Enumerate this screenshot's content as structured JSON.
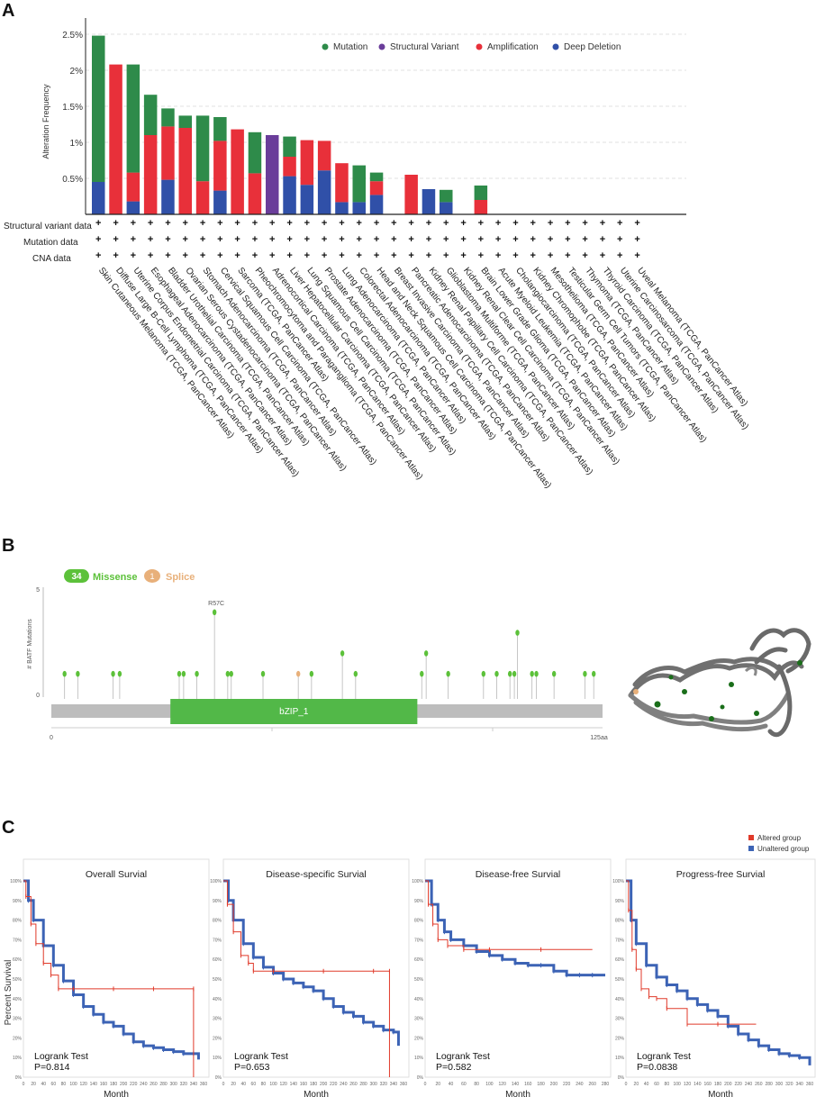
{
  "panels": {
    "a": "A",
    "b": "B",
    "c": "C"
  },
  "colors": {
    "mutation": "#2e8b4a",
    "structural_variant": "#6a3d9a",
    "amplification": "#e8303a",
    "deep_deletion": "#3050a8",
    "altered": "#e03a2a",
    "unaltered": "#3c63b5",
    "missense": "#5cc13a",
    "splice": "#e8b07a",
    "domain": "#52b848",
    "track": "#bdbdbd"
  },
  "chart_data": [
    {
      "type": "bar",
      "ylabel": "Alteration Frequency",
      "xlabel": "",
      "ylim": [
        0,
        2.5
      ],
      "yticks": [
        "2.5%",
        "2%",
        "1.5%",
        "1%",
        "0.5%"
      ],
      "legend_placement": "top-right",
      "legend": [
        "Mutation",
        "Structural Variant",
        "Amplification",
        "Deep Deletion"
      ],
      "categories": [
        "Skin Cutaneous Melanoma (TCGA, PanCancer Atlas)",
        "Diffuse Large B-Cell Lymphoma (TCGA, PanCancer Atlas)",
        "Uterine Corpus Endometrial Carcinoma (TCGA, PanCancer Atlas)",
        "Esophageal Adenocarcinoma (TCGA, PanCancer Atlas)",
        "Bladder Urothelial Carcinoma (TCGA, PanCancer Atlas)",
        "Ovarian Serous Cystadenocarcinoma (TCGA, PanCancer Atlas)",
        "Stomach Adenocarcinoma (TCGA, PanCancer Atlas)",
        "Cervical Squamous Cell Carcinoma (TCGA, PanCancer Atlas)",
        "Sarcoma (TCGA, PanCancer Atlas)",
        "Pheochromocytoma and Paraganglioma (TCGA, PanCancer Atlas)",
        "Adrenocortical Carcinoma (TCGA, PanCancer Atlas)",
        "Liver Hepatocellular Carcinoma (TCGA, PanCancer Atlas)",
        "Lung Squamous Cell Carcinoma (TCGA, PanCancer Atlas)",
        "Prostate Adenocarcinoma (TCGA, PanCancer Atlas)",
        "Lung Adenocarcinoma (TCGA, PanCancer Atlas)",
        "Colorectal Adenocarcinoma (TCGA, PanCancer Atlas)",
        "Head and Neck Squamous Cell Carcinoma (TCGA, PanCancer Atlas)",
        "Breast Invasive Carcinoma (TCGA, PanCancer Atlas)",
        "Pancreatic Adenocarcinoma (TCGA, PanCancer Atlas)",
        "Kidney Renal Papillary Cell Carcinoma (TCGA, PanCancer Atlas)",
        "Glioblastoma Multiforme (TCGA, PanCancer Atlas)",
        "Kidney Renal Clear Cell Carcinoma (TCGA, PanCancer Atlas)",
        "Brain Lower Grade Glioma (TCGA, PanCancer Atlas)",
        "Acute Myeloid Leukemia (TCGA, PanCancer Atlas)",
        "Cholangiocarcinoma (TCGA, PanCancer Atlas)",
        "Kidney Chromophobe (TCGA, PanCancer Atlas)",
        "Mesothelioma (TCGA, PanCancer Atlas)",
        "Testicular Germ Cell Tumors (TCGA, PanCancer Atlas)",
        "Thymoma (TCGA, PanCancer Atlas)",
        "Thyroid Carcinoma (TCGA, PanCancer Atlas)",
        "Uterine Carcinosarcoma (TCGA, PanCancer Atlas)",
        "Uveal Melanoma (TCGA, PanCancer Atlas)"
      ],
      "series": [
        {
          "name": "Deep Deletion",
          "values": [
            0.45,
            0,
            0.18,
            0,
            0.48,
            0,
            0,
            0.33,
            0,
            0,
            0,
            0.53,
            0.41,
            0.61,
            0.17,
            0.17,
            0.27,
            0,
            0,
            0.35,
            0.17,
            0,
            0,
            0,
            0,
            0,
            0,
            0,
            0,
            0,
            0,
            0
          ]
        },
        {
          "name": "Amplification",
          "values": [
            0,
            2.08,
            0.4,
            1.1,
            0.74,
            1.2,
            0.46,
            0.69,
            1.18,
            0.57,
            0,
            0.27,
            0.62,
            0.41,
            0.54,
            0,
            0.19,
            0,
            0.55,
            0,
            0,
            0,
            0.2,
            0,
            0,
            0,
            0,
            0,
            0,
            0,
            0,
            0
          ]
        },
        {
          "name": "Structural Variant",
          "values": [
            0,
            0,
            0,
            0,
            0,
            0,
            0,
            0,
            0,
            0,
            1.1,
            0,
            0,
            0,
            0,
            0,
            0,
            0,
            0,
            0,
            0,
            0,
            0,
            0,
            0,
            0,
            0,
            0,
            0,
            0,
            0,
            0
          ]
        },
        {
          "name": "Mutation",
          "values": [
            2.03,
            0,
            1.5,
            0.56,
            0.25,
            0.17,
            0.91,
            0.33,
            0,
            0.57,
            0,
            0.28,
            0,
            0,
            0,
            0.51,
            0.12,
            0,
            0,
            0,
            0.17,
            0,
            0.2,
            0,
            0,
            0,
            0,
            0,
            0,
            0,
            0,
            0
          ]
        }
      ],
      "row_labels": [
        "Structural variant data",
        "Mutation data",
        "CNA data"
      ],
      "row_marker": "+"
    },
    {
      "type": "scatter",
      "subtype": "lollipop",
      "ylabel": "# BATF Mutations",
      "ylim": [
        0,
        5
      ],
      "yticks": [
        "5",
        "0"
      ],
      "xlim": [
        0,
        125
      ],
      "xtick_start": "0",
      "xtick_end": "125aa",
      "legend": [
        {
          "count": "34",
          "label": "Missense"
        },
        {
          "count": "1",
          "label": "Splice"
        }
      ],
      "domain": {
        "label": "bZIP_1",
        "start": 27,
        "end": 83
      },
      "annotation": "R57C",
      "mutations": [
        {
          "pos": 3,
          "count": 1,
          "kind": "missense"
        },
        {
          "pos": 6,
          "count": 1,
          "kind": "missense"
        },
        {
          "pos": 14,
          "count": 1,
          "kind": "missense"
        },
        {
          "pos": 15.5,
          "count": 1,
          "kind": "missense"
        },
        {
          "pos": 29,
          "count": 1,
          "kind": "missense"
        },
        {
          "pos": 30,
          "count": 1,
          "kind": "missense"
        },
        {
          "pos": 33,
          "count": 1,
          "kind": "missense"
        },
        {
          "pos": 37,
          "count": 4,
          "kind": "missense",
          "label": "R57C"
        },
        {
          "pos": 40,
          "count": 1,
          "kind": "missense"
        },
        {
          "pos": 40.8,
          "count": 1,
          "kind": "missense"
        },
        {
          "pos": 48,
          "count": 1,
          "kind": "missense"
        },
        {
          "pos": 56,
          "count": 1,
          "kind": "splice"
        },
        {
          "pos": 59,
          "count": 1,
          "kind": "missense"
        },
        {
          "pos": 66,
          "count": 2,
          "kind": "missense"
        },
        {
          "pos": 69,
          "count": 1,
          "kind": "missense"
        },
        {
          "pos": 84,
          "count": 1,
          "kind": "missense"
        },
        {
          "pos": 85,
          "count": 2,
          "kind": "missense"
        },
        {
          "pos": 90,
          "count": 1,
          "kind": "missense"
        },
        {
          "pos": 98,
          "count": 1,
          "kind": "missense"
        },
        {
          "pos": 101,
          "count": 1,
          "kind": "missense"
        },
        {
          "pos": 104,
          "count": 1,
          "kind": "missense"
        },
        {
          "pos": 105,
          "count": 1,
          "kind": "missense"
        },
        {
          "pos": 105.7,
          "count": 3,
          "kind": "missense"
        },
        {
          "pos": 109,
          "count": 1,
          "kind": "missense"
        },
        {
          "pos": 110,
          "count": 1,
          "kind": "missense"
        },
        {
          "pos": 114,
          "count": 1,
          "kind": "missense"
        },
        {
          "pos": 121,
          "count": 1,
          "kind": "missense"
        },
        {
          "pos": 123,
          "count": 1,
          "kind": "missense"
        }
      ]
    },
    {
      "type": "line",
      "subtype": "kaplan-meier",
      "ylabel": "Percent Survival",
      "xlabel": "Month",
      "legend_placement": "top-right",
      "legend": [
        "Altered group",
        "Unaltered group"
      ],
      "plots": [
        {
          "title": "Overall Survial",
          "test": "Logrank Test",
          "p": "P=0.814",
          "xmax": 360,
          "xticks": [
            "0",
            "20",
            "40",
            "60",
            "80",
            "100",
            "120",
            "140",
            "160",
            "180",
            "200",
            "220",
            "240",
            "260",
            "280",
            "300",
            "320",
            "340",
            "360"
          ],
          "yticks": [
            "0%",
            "10%",
            "20%",
            "30%",
            "40%",
            "50%",
            "60%",
            "70%",
            "80%",
            "90%",
            "100%"
          ],
          "altered": [
            [
              0,
              100
            ],
            [
              5,
              92
            ],
            [
              15,
              78
            ],
            [
              25,
              68
            ],
            [
              40,
              58
            ],
            [
              55,
              52
            ],
            [
              70,
              45
            ],
            [
              100,
              45
            ],
            [
              180,
              45
            ],
            [
              260,
              45
            ],
            [
              340,
              45
            ],
            [
              340,
              0
            ]
          ],
          "unaltered": [
            [
              0,
              100
            ],
            [
              10,
              90
            ],
            [
              20,
              80
            ],
            [
              40,
              67
            ],
            [
              60,
              57
            ],
            [
              80,
              49
            ],
            [
              100,
              42
            ],
            [
              120,
              36
            ],
            [
              140,
              32
            ],
            [
              160,
              28
            ],
            [
              180,
              26
            ],
            [
              200,
              22
            ],
            [
              220,
              18
            ],
            [
              240,
              16
            ],
            [
              260,
              15
            ],
            [
              280,
              14
            ],
            [
              300,
              13
            ],
            [
              320,
              12
            ],
            [
              340,
              12
            ],
            [
              350,
              9
            ]
          ]
        },
        {
          "title": "Disease-specific Survial",
          "test": "Logrank Test",
          "p": "P=0.653",
          "xmax": 360,
          "xticks": [
            "0",
            "20",
            "40",
            "60",
            "80",
            "100",
            "120",
            "140",
            "160",
            "180",
            "200",
            "220",
            "240",
            "260",
            "280",
            "300",
            "320",
            "340",
            "360"
          ],
          "yticks": [
            "0%",
            "10%",
            "20%",
            "30%",
            "40%",
            "50%",
            "60%",
            "70%",
            "80%",
            "90%",
            "100%"
          ],
          "altered": [
            [
              0,
              100
            ],
            [
              8,
              88
            ],
            [
              20,
              74
            ],
            [
              35,
              62
            ],
            [
              50,
              58
            ],
            [
              60,
              54
            ],
            [
              100,
              54
            ],
            [
              200,
              54
            ],
            [
              300,
              54
            ],
            [
              332,
              54
            ],
            [
              332,
              0
            ]
          ],
          "unaltered": [
            [
              0,
              100
            ],
            [
              10,
              90
            ],
            [
              20,
              80
            ],
            [
              40,
              68
            ],
            [
              60,
              61
            ],
            [
              80,
              56
            ],
            [
              100,
              53
            ],
            [
              120,
              50
            ],
            [
              140,
              48
            ],
            [
              160,
              46
            ],
            [
              180,
              44
            ],
            [
              200,
              40
            ],
            [
              220,
              36
            ],
            [
              240,
              33
            ],
            [
              260,
              31
            ],
            [
              280,
              28
            ],
            [
              300,
              26
            ],
            [
              320,
              24
            ],
            [
              340,
              23
            ],
            [
              350,
              16
            ]
          ]
        },
        {
          "title": "Disease-free Survial",
          "test": "Logrank Test",
          "p": "P=0.582",
          "xmax": 280,
          "xticks": [
            "0",
            "20",
            "40",
            "60",
            "80",
            "100",
            "120",
            "140",
            "160",
            "180",
            "200",
            "220",
            "240",
            "260",
            "280"
          ],
          "yticks": [
            "0%",
            "10%",
            "20%",
            "30%",
            "40%",
            "50%",
            "60%",
            "70%",
            "80%",
            "90%",
            "100%"
          ],
          "altered": [
            [
              0,
              100
            ],
            [
              5,
              88
            ],
            [
              12,
              78
            ],
            [
              20,
              70
            ],
            [
              35,
              67
            ],
            [
              60,
              65
            ],
            [
              100,
              65
            ],
            [
              180,
              65
            ],
            [
              260,
              65
            ]
          ],
          "unaltered": [
            [
              0,
              100
            ],
            [
              10,
              88
            ],
            [
              20,
              80
            ],
            [
              30,
              74
            ],
            [
              40,
              70
            ],
            [
              60,
              67
            ],
            [
              80,
              64
            ],
            [
              100,
              62
            ],
            [
              120,
              60
            ],
            [
              140,
              58
            ],
            [
              160,
              57
            ],
            [
              180,
              57
            ],
            [
              200,
              54
            ],
            [
              220,
              52
            ],
            [
              240,
              52
            ],
            [
              260,
              52
            ],
            [
              280,
              52
            ]
          ]
        },
        {
          "title": "Progress-free Survial",
          "test": "Logrank Test",
          "p": "P=0.0838",
          "xmax": 360,
          "xticks": [
            "0",
            "20",
            "40",
            "60",
            "80",
            "100",
            "120",
            "140",
            "160",
            "180",
            "200",
            "220",
            "240",
            "260",
            "280",
            "300",
            "320",
            "340",
            "360"
          ],
          "yticks": [
            "0%",
            "10%",
            "20%",
            "30%",
            "40%",
            "50%",
            "60%",
            "70%",
            "80%",
            "90%",
            "100%"
          ],
          "altered": [
            [
              0,
              100
            ],
            [
              5,
              85
            ],
            [
              12,
              65
            ],
            [
              20,
              55
            ],
            [
              30,
              45
            ],
            [
              45,
              41
            ],
            [
              60,
              40
            ],
            [
              80,
              35
            ],
            [
              120,
              27
            ],
            [
              180,
              27
            ],
            [
              255,
              27
            ]
          ],
          "unaltered": [
            [
              0,
              100
            ],
            [
              10,
              80
            ],
            [
              20,
              68
            ],
            [
              40,
              57
            ],
            [
              60,
              51
            ],
            [
              80,
              47
            ],
            [
              100,
              44
            ],
            [
              120,
              40
            ],
            [
              140,
              37
            ],
            [
              160,
              34
            ],
            [
              180,
              31
            ],
            [
              200,
              26
            ],
            [
              220,
              22
            ],
            [
              240,
              19
            ],
            [
              260,
              16
            ],
            [
              280,
              14
            ],
            [
              300,
              12
            ],
            [
              320,
              11
            ],
            [
              340,
              10
            ],
            [
              360,
              6
            ]
          ]
        }
      ]
    }
  ]
}
